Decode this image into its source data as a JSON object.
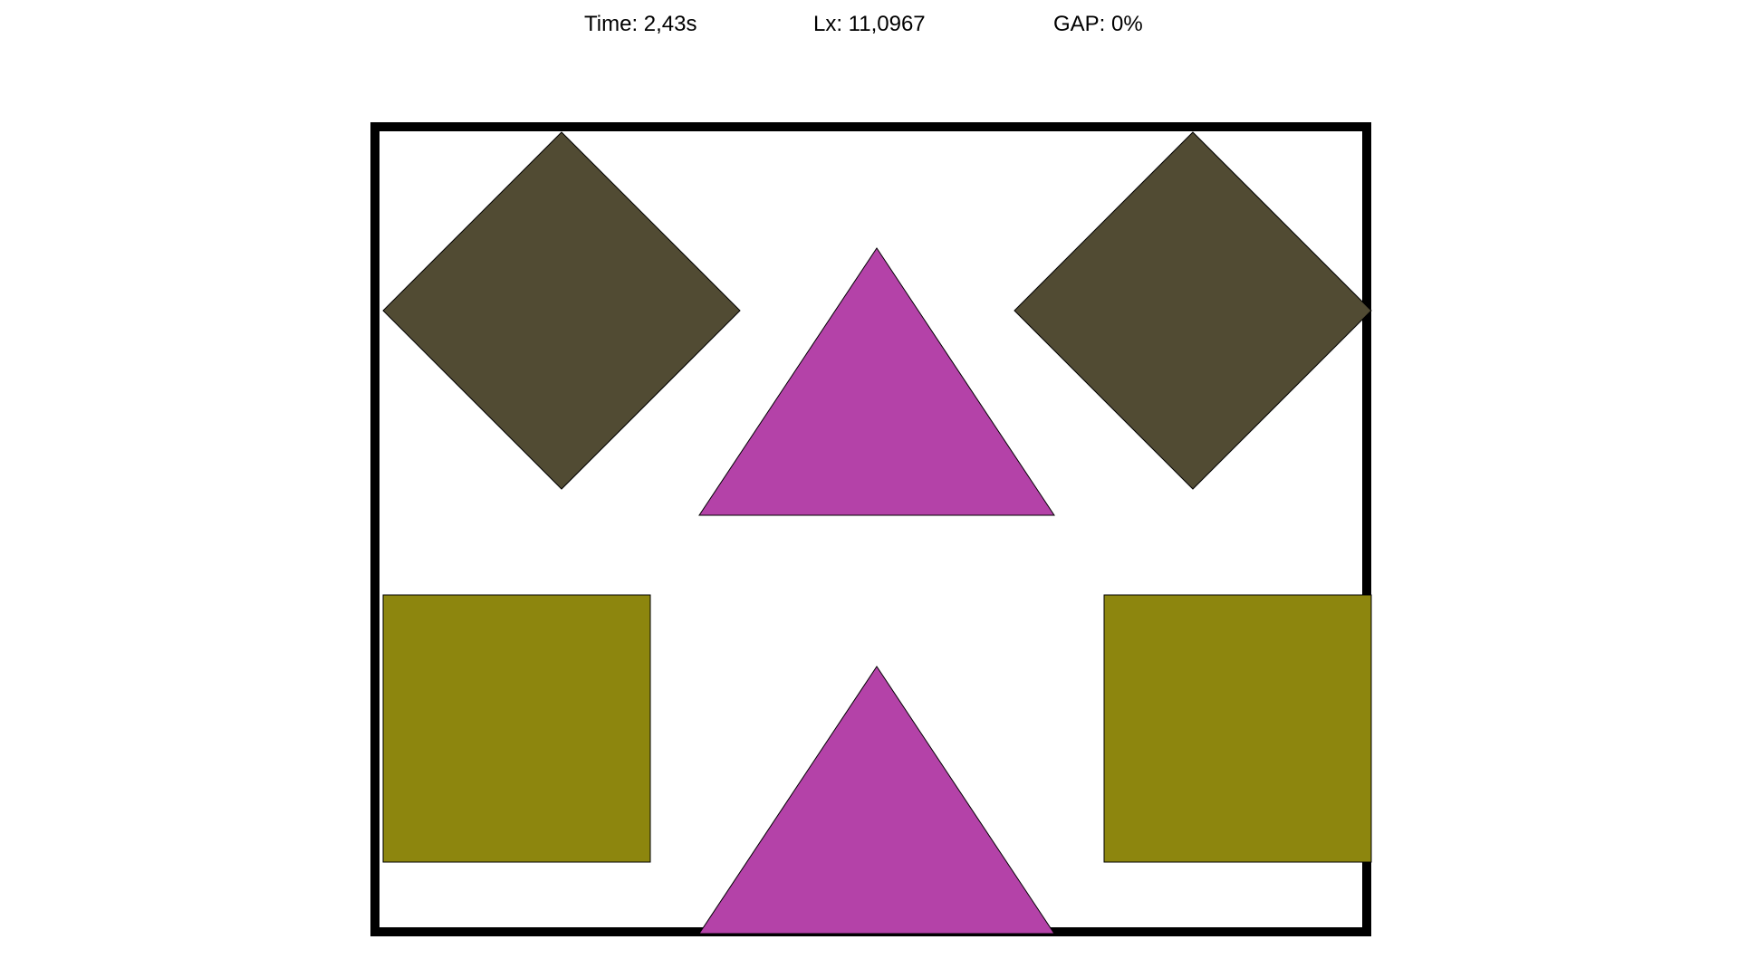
{
  "hud": {
    "time": "Time: 2,43s",
    "lx": "Lx: 11,0967",
    "gap": "GAP: 0%"
  },
  "colors": {
    "background": "#ffffff",
    "frame": "#000000",
    "diamond": "#514b33",
    "triangle": "#b442a8",
    "square": "#8d860e"
  },
  "shapes": [
    {
      "name": "diamond-top-left",
      "kind": "diamond"
    },
    {
      "name": "triangle-top-center",
      "kind": "triangle"
    },
    {
      "name": "diamond-top-right",
      "kind": "diamond"
    },
    {
      "name": "square-bottom-left",
      "kind": "square"
    },
    {
      "name": "triangle-bottom-center",
      "kind": "triangle"
    },
    {
      "name": "square-bottom-right",
      "kind": "square"
    }
  ]
}
